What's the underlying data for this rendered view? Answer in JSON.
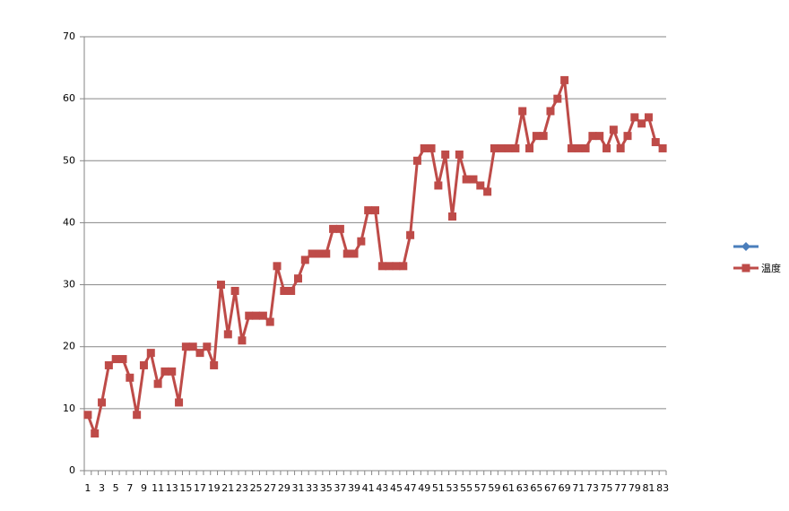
{
  "chart_data": {
    "type": "line",
    "categories": [
      1,
      null,
      3,
      null,
      5,
      null,
      7,
      null,
      9,
      null,
      11,
      null,
      13,
      null,
      15,
      null,
      17,
      null,
      19,
      null,
      21,
      null,
      23,
      null,
      25,
      null,
      27,
      null,
      29,
      null,
      31,
      null,
      33,
      null,
      35,
      null,
      37,
      null,
      39,
      null,
      41,
      null,
      43,
      null,
      45,
      null,
      47,
      null,
      49,
      null,
      51,
      null,
      53,
      null,
      55,
      null,
      57,
      null,
      59,
      null,
      61,
      null,
      63,
      null,
      65,
      null,
      67,
      null,
      69,
      null,
      71,
      null,
      73,
      null,
      75,
      null,
      77,
      null,
      79,
      null,
      81,
      null,
      83
    ],
    "series": [
      {
        "name": null,
        "color": "#4a7ebb",
        "marker": "diamond",
        "values": [
          null,
          null,
          null,
          null,
          null,
          null,
          null,
          null,
          null,
          null,
          null,
          null,
          null,
          null,
          null,
          null,
          null,
          null,
          null,
          null,
          null,
          null,
          null,
          null,
          null,
          null,
          null,
          null,
          null,
          null,
          null,
          null,
          null,
          null,
          null,
          null,
          null,
          null,
          null,
          null,
          null,
          null,
          null,
          null,
          null,
          null,
          null,
          null,
          null,
          null,
          null,
          null,
          null,
          null,
          null,
          null,
          null,
          null,
          null,
          null,
          null,
          null,
          null,
          null,
          null,
          null,
          null,
          null,
          null,
          null,
          null,
          null,
          null,
          null,
          null,
          null,
          null,
          null,
          null,
          null,
          null,
          null,
          null
        ]
      },
      {
        "name": "温度",
        "color": "#be4b48",
        "marker": "square",
        "values": [
          9,
          6,
          11,
          17,
          18,
          18,
          15,
          9,
          17,
          19,
          14,
          16,
          16,
          11,
          20,
          20,
          19,
          20,
          17,
          30,
          22,
          29,
          21,
          25,
          25,
          25,
          24,
          33,
          29,
          29,
          31,
          34,
          35,
          35,
          35,
          39,
          39,
          35,
          35,
          37,
          42,
          42,
          33,
          33,
          33,
          33,
          38,
          50,
          52,
          52,
          46,
          51,
          41,
          51,
          47,
          47,
          46,
          45,
          52,
          52,
          52,
          52,
          58,
          52,
          54,
          54,
          58,
          60,
          63,
          52,
          52,
          52,
          54,
          54,
          52,
          55,
          52,
          54,
          57,
          56,
          57,
          53,
          52
        ]
      }
    ],
    "ylim": [
      0,
      70
    ],
    "yticks": [
      0,
      10,
      20,
      30,
      40,
      50,
      60,
      70
    ],
    "grid": true,
    "legend": "right"
  }
}
